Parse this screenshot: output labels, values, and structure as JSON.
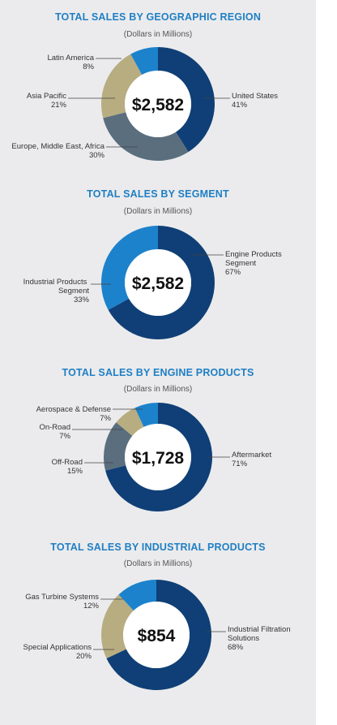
{
  "chart_data": [
    {
      "type": "pie",
      "title": "TOTAL SALES BY GEOGRAPHIC REGION",
      "subtitle": "(Dollars in Millions)",
      "center_label": "$2,582",
      "slices": [
        {
          "label": "United States",
          "value": 41,
          "value_label": "41%",
          "color": "#0f3f76"
        },
        {
          "label": "Europe, Middle East, Africa",
          "value": 30,
          "value_label": "30%",
          "color": "#5a6e7e"
        },
        {
          "label": "Asia Pacific",
          "value": 21,
          "value_label": "21%",
          "color": "#b7ad80"
        },
        {
          "label": "Latin America",
          "value": 8,
          "value_label": "8%",
          "color": "#1c82cc"
        }
      ]
    },
    {
      "type": "pie",
      "title": "TOTAL SALES BY SEGMENT",
      "subtitle": "(Dollars in Millions)",
      "center_label": "$2,582",
      "slices": [
        {
          "label": "Engine Products Segment",
          "value": 67,
          "value_label": "67%",
          "color": "#0f3f76"
        },
        {
          "label": "Industrial Products Segment",
          "value": 33,
          "value_label": "33%",
          "color": "#1c82cc"
        }
      ]
    },
    {
      "type": "pie",
      "title": "TOTAL SALES BY ENGINE PRODUCTS",
      "subtitle": "(Dollars in Millions)",
      "center_label": "$1,728",
      "slices": [
        {
          "label": "Aftermarket",
          "value": 71,
          "value_label": "71%",
          "color": "#0f3f76"
        },
        {
          "label": "Off-Road",
          "value": 15,
          "value_label": "15%",
          "color": "#5a6e7e"
        },
        {
          "label": "On-Road",
          "value": 7,
          "value_label": "7%",
          "color": "#b7ad80"
        },
        {
          "label": "Aerospace & Defense",
          "value": 7,
          "value_label": "7%",
          "color": "#1c82cc"
        }
      ]
    },
    {
      "type": "pie",
      "title": "TOTAL SALES BY INDUSTRIAL PRODUCTS",
      "subtitle": "(Dollars in Millions)",
      "center_label": "$854",
      "slices": [
        {
          "label": "Industrial Filtration Solutions",
          "value": 68,
          "value_label": "68%",
          "color": "#0f3f76"
        },
        {
          "label": "Special Applications",
          "value": 20,
          "value_label": "20%",
          "color": "#b7ad80"
        },
        {
          "label": "Gas Turbine Systems",
          "value": 12,
          "value_label": "12%",
          "color": "#1c82cc"
        }
      ]
    }
  ]
}
